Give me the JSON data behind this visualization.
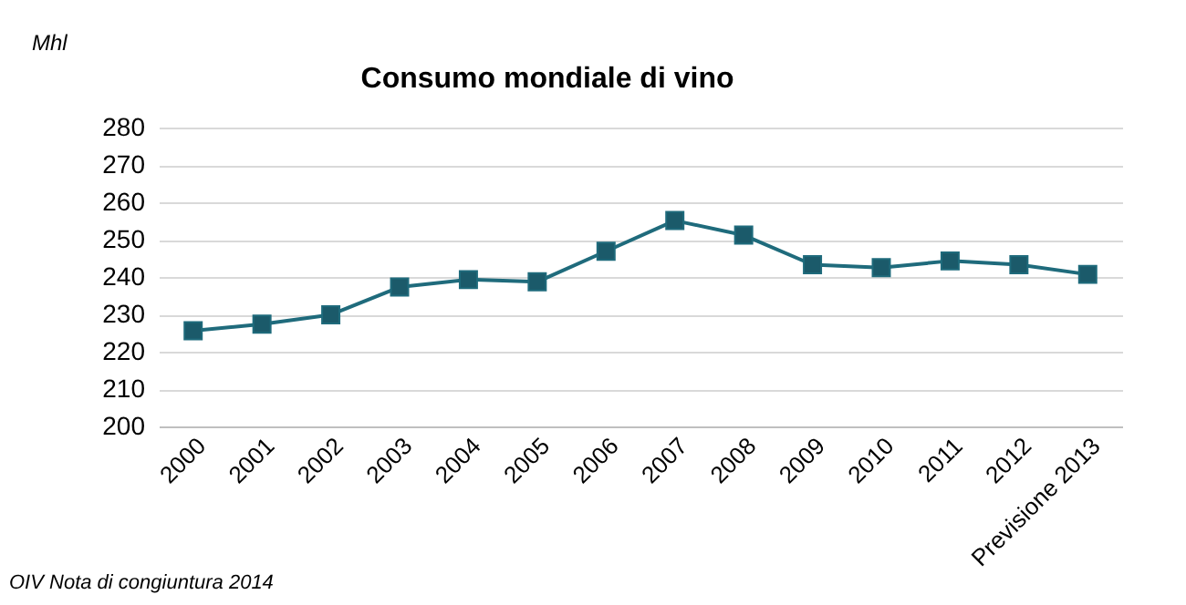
{
  "chart_data": {
    "type": "line",
    "title": "Consumo mondiale di vino",
    "ylabel": "Mhl",
    "categories": [
      "2000",
      "2001",
      "2002",
      "2003",
      "2004",
      "2005",
      "2006",
      "2007",
      "2008",
      "2009",
      "2010",
      "2011",
      "2012",
      "Previsione 2013"
    ],
    "series": [
      {
        "color": "#1f6b7c",
        "values": [
          225.6,
          227.4,
          229.9,
          237.3,
          239.3,
          238.7,
          246.9,
          255.1,
          251.2,
          243.3,
          242.5,
          244.3,
          243.3,
          240.7
        ]
      }
    ],
    "ylim": [
      200,
      280
    ],
    "yticks": [
      200,
      210,
      220,
      230,
      240,
      250,
      260,
      270,
      280
    ],
    "grid": "y",
    "marker": "square",
    "line_style": "solid",
    "annotations": [
      "OIV Nota di congiuntura 2014"
    ]
  }
}
